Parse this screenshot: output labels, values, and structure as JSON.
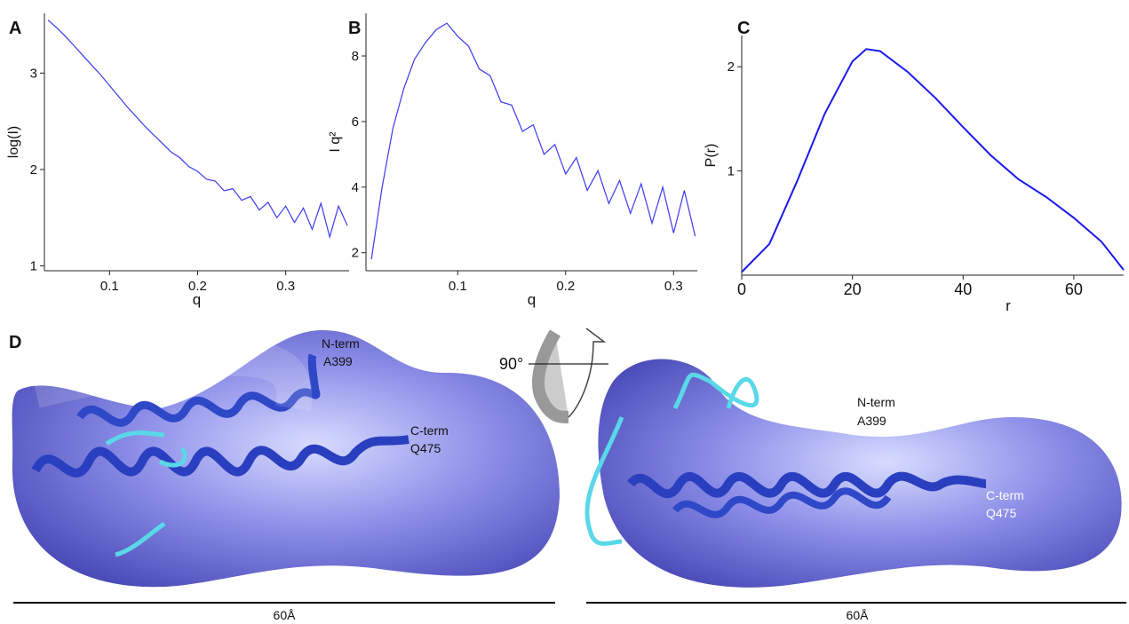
{
  "chart_data": [
    {
      "type": "line",
      "panel": "A",
      "xlabel": "q",
      "ylabel": "log(I)",
      "color": "#3a3aee",
      "x": [
        0.03,
        0.04,
        0.05,
        0.06,
        0.07,
        0.08,
        0.09,
        0.1,
        0.11,
        0.12,
        0.13,
        0.14,
        0.15,
        0.16,
        0.17,
        0.18,
        0.19,
        0.2,
        0.21,
        0.22,
        0.23,
        0.24,
        0.25,
        0.26,
        0.27,
        0.28,
        0.29,
        0.3,
        0.31,
        0.32,
        0.33,
        0.34,
        0.35,
        0.36,
        0.37
      ],
      "values": [
        3.55,
        3.47,
        3.38,
        3.28,
        3.18,
        3.08,
        2.98,
        2.87,
        2.76,
        2.65,
        2.55,
        2.45,
        2.36,
        2.27,
        2.18,
        2.12,
        2.03,
        1.98,
        1.9,
        1.88,
        1.78,
        1.8,
        1.68,
        1.72,
        1.58,
        1.66,
        1.5,
        1.62,
        1.45,
        1.6,
        1.38,
        1.65,
        1.3,
        1.62,
        1.42
      ],
      "xlim": [
        0.026,
        0.372
      ],
      "ylim": [
        0.95,
        3.62
      ],
      "xticks": [
        0.1,
        0.2,
        0.3
      ],
      "yticks": [
        1,
        2,
        3
      ]
    },
    {
      "type": "line",
      "panel": "B",
      "xlabel": "q",
      "ylabel": "I q²",
      "color": "#3a3aee",
      "x": [
        0.02,
        0.03,
        0.04,
        0.05,
        0.06,
        0.07,
        0.08,
        0.09,
        0.1,
        0.11,
        0.12,
        0.13,
        0.14,
        0.15,
        0.16,
        0.17,
        0.18,
        0.19,
        0.2,
        0.21,
        0.22,
        0.23,
        0.24,
        0.25,
        0.26,
        0.27,
        0.28,
        0.29,
        0.3,
        0.31,
        0.32
      ],
      "values": [
        1.8,
        4.0,
        5.8,
        7.0,
        7.9,
        8.4,
        8.8,
        9.0,
        8.6,
        8.3,
        7.6,
        7.4,
        6.6,
        6.5,
        5.7,
        5.9,
        5.0,
        5.3,
        4.4,
        4.9,
        3.9,
        4.5,
        3.5,
        4.2,
        3.2,
        4.1,
        2.9,
        4.0,
        2.6,
        3.9,
        2.5
      ],
      "xlim": [
        0.015,
        0.322
      ],
      "ylim": [
        1.45,
        9.3
      ],
      "xticks": [
        0.1,
        0.2,
        0.3
      ],
      "yticks": [
        2,
        4,
        6,
        8
      ]
    },
    {
      "type": "line",
      "panel": "C",
      "xlabel": "r",
      "ylabel": "P(r)",
      "color": "#1a1aee",
      "x": [
        0,
        5,
        10,
        15,
        20,
        22.5,
        25,
        30,
        35,
        40,
        45,
        50,
        55,
        60,
        65,
        69
      ],
      "values": [
        0.03,
        0.3,
        0.9,
        1.55,
        2.05,
        2.17,
        2.15,
        1.95,
        1.7,
        1.42,
        1.15,
        0.92,
        0.75,
        0.55,
        0.32,
        0.05
      ],
      "xlim": [
        0,
        69
      ],
      "ylim": [
        0,
        2.3
      ],
      "xticks": [
        0,
        20,
        40,
        60
      ],
      "yticks": [
        1,
        2
      ]
    }
  ],
  "panel_d": {
    "label": "D",
    "rotation": "90°",
    "left": {
      "n_term": "N-term",
      "n_res": "A399",
      "c_term": "C-term",
      "c_res": "Q475",
      "scale": "60Å"
    },
    "right": {
      "n_term": "N-term",
      "n_res": "A399",
      "c_term": "C-term",
      "c_res": "Q475",
      "scale": "60Å"
    }
  }
}
